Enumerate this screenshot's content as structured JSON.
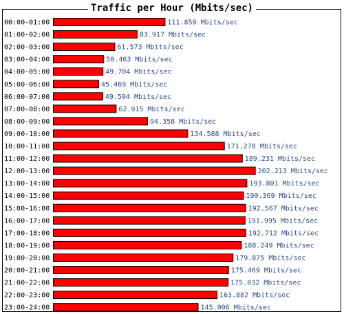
{
  "chart_data": {
    "type": "bar",
    "orientation": "horizontal",
    "title": "Traffic per Hour (Mbits/sec)",
    "categories": [
      "00:00-01:00",
      "01:00-02:00",
      "02:00-03:00",
      "03:00-04:00",
      "04:00-05:00",
      "05:00-06:00",
      "06:00-07:00",
      "07:00-08:00",
      "08:00-09:00",
      "09:00-10:00",
      "10:00-11:00",
      "11:00-12:00",
      "12:00-13:00",
      "13:00-14:00",
      "14:00-15:00",
      "15:00-16:00",
      "16:00-17:00",
      "17:00-18:00",
      "18:00-19:00",
      "19:00-20:00",
      "20:00-21:00",
      "21:00-22:00",
      "22:00-23:00",
      "23:00-24:00"
    ],
    "values": [
      111.859,
      83.917,
      61.573,
      50.463,
      49.704,
      45.469,
      49.504,
      62.915,
      94.358,
      134.588,
      171.278,
      189.231,
      202.213,
      193.801,
      190.369,
      192.567,
      191.995,
      192.712,
      188.249,
      179.875,
      175.469,
      175.032,
      163.882,
      145.006
    ],
    "value_labels": [
      "111.859 Mbits/sec",
      "83.917 Mbits/sec",
      "61.573 Mbits/sec",
      "50.463 Mbits/sec",
      "49.704 Mbits/sec",
      "45.469 Mbits/sec",
      "49.504 Mbits/sec",
      "62.915 Mbits/sec",
      "94.358 Mbits/sec",
      "134.588 Mbits/sec",
      "171.278 Mbits/sec",
      "189.231 Mbits/sec",
      "202.213 Mbits/sec",
      "193.801 Mbits/sec",
      "190.369 Mbits/sec",
      "192.567 Mbits/sec",
      "191.995 Mbits/sec",
      "192.712 Mbits/sec",
      "188.249 Mbits/sec",
      "179.875 Mbits/sec",
      "175.469 Mbits/sec",
      "175.032 Mbits/sec",
      "163.882 Mbits/sec",
      "145.006 Mbits/sec"
    ],
    "xlabel": "",
    "ylabel": "",
    "grid": false,
    "legend": "none",
    "colors": {
      "bar_fill": "#ff0000",
      "bar_stroke": "#000000",
      "value_text": "#2a4a8a",
      "category_text": "#000000",
      "frame": "#000000"
    }
  }
}
